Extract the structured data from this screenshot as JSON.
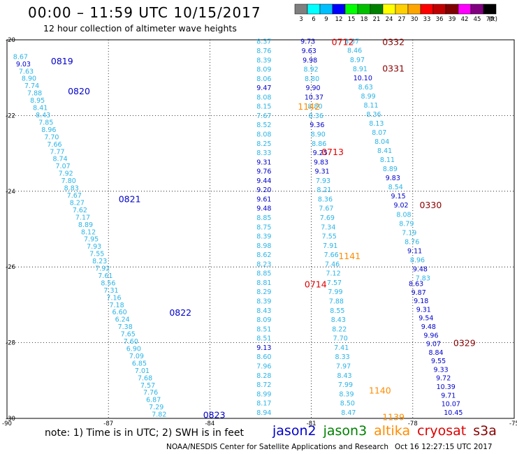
{
  "title": "00:00 – 11:59 UTC 10/15/2017",
  "subtitle": "12 hour collection of altimeter wave heights",
  "legend": {
    "labels": [
      "3",
      "6",
      "9",
      "12",
      "15",
      "18",
      "21",
      "24",
      "27",
      "30",
      "33",
      "36",
      "39",
      "42",
      "45",
      "70"
    ],
    "unit": "(ft)",
    "colors": [
      "#7f7f7f",
      "#00ffff",
      "#00bfff",
      "#0000ff",
      "#00ff00",
      "#00c000",
      "#008000",
      "#ffff00",
      "#ffd000",
      "#ffa500",
      "#ff0000",
      "#c00000",
      "#800000",
      "#ff00ff",
      "#800080",
      "#000000"
    ]
  },
  "footer": {
    "note": "note: 1) Time is in UTC; 2) SWH is in feet",
    "satellites": [
      {
        "name": "jason2",
        "color": "#0000cc"
      },
      {
        "name": "jason3",
        "color": "#008000"
      },
      {
        "name": "altika",
        "color": "#ff8c00"
      },
      {
        "name": "cryosat",
        "color": "#dd0000"
      },
      {
        "name": "s3a",
        "color": "#880000"
      }
    ],
    "credit": "NOAA/NESDIS Center for Satellite Applications and Research",
    "timestamp": "Oct 16 12:27:15 UTC 2017"
  },
  "chart_data": {
    "type": "map",
    "xticks": [
      "-90",
      "-87",
      "-84",
      "-81",
      "-78",
      "-75"
    ],
    "yticks": [
      "-20",
      "-22",
      "-24",
      "-26",
      "-28",
      "-30"
    ],
    "xlim": [
      -90,
      -75
    ],
    "ylim": [
      -30,
      -20
    ],
    "tracks": [
      {
        "color": "#2ab4e6",
        "x0": -89.6,
        "y0": -20.45,
        "x1": -85.5,
        "y1": -29.9,
        "values": [
          "8.67",
          "9.03",
          "7.63",
          "8.90",
          "7.74",
          "7.88",
          "8.95",
          "8.41",
          "8.43",
          "7.85",
          "8.96",
          "7.70",
          "7.66",
          "7.77",
          "8.74",
          "7.07",
          "7.92",
          "7.80",
          "8.83",
          "7.67",
          "8.27",
          "7.62",
          "7.17",
          "8.89",
          "8.12",
          "7.95",
          "7.93",
          "7.55",
          "8.23",
          "7.92",
          "7.61",
          "8.56",
          "7.31",
          "7.16",
          "7.18",
          "6.60",
          "6.24",
          "7.38",
          "7.65",
          "7.60",
          "6.90",
          "7.09",
          "6.85",
          "7.01",
          "7.68",
          "7.57",
          "7.76",
          "6.87",
          "7.29",
          "7.82"
        ]
      },
      {
        "color": "#2ab4e6",
        "x0": -82.4,
        "y0": -20.05,
        "x1": -82.4,
        "y1": -29.85,
        "values": [
          "8.37",
          "8.76",
          "8.39",
          "8.09",
          "8.06",
          "9.47",
          "8.08",
          "8.15",
          "7.67",
          "8.52",
          "8.08",
          "8.25",
          "8.33",
          "9.31",
          "9.76",
          "9.44",
          "9.20",
          "9.61",
          "9.48",
          "8.85",
          "8.75",
          "8.39",
          "8.98",
          "8.62",
          "8.23",
          "8.85",
          "8.81",
          "8.29",
          "8.39",
          "8.43",
          "8.09",
          "8.51",
          "8.51",
          "9.13",
          "8.60",
          "7.96",
          "8.28",
          "8.72",
          "8.99",
          "8.17",
          "8.94"
        ]
      },
      {
        "color": "#2ab4e6",
        "x0": -81.1,
        "y0": -20.05,
        "x1": -79.9,
        "y1": -29.85,
        "values": [
          "9.73",
          "9.63",
          "9.98",
          "8.92",
          "8.80",
          "9.90",
          "10.37",
          "8.80",
          "8.36",
          "9.36",
          "8.90",
          "8.86",
          "9.25",
          "9.83",
          "9.31",
          "7.93",
          "8.21",
          "8.36",
          "7.67",
          "7.69",
          "7.34",
          "7.55",
          "7.91",
          "7.66",
          "7.46",
          "7.12",
          "7.57",
          "7.99",
          "7.88",
          "8.55",
          "8.43",
          "8.22",
          "7.70",
          "7.41",
          "8.33",
          "7.97",
          "8.43",
          "7.99",
          "8.39",
          "8.50",
          "8.47"
        ]
      },
      {
        "color": "#2ab4e6",
        "x0": -79.8,
        "y0": -20.05,
        "x1": -77.7,
        "y1": -26.3,
        "values": [
          "8.57",
          "8.46",
          "8.97",
          "8.91",
          "10.10",
          "8.63",
          "8.99",
          "8.11",
          "8.36",
          "8.13",
          "8.07",
          "8.04",
          "8.41",
          "8.11",
          "8.89",
          "9.83",
          "8.54",
          "9.15",
          "9.02",
          "8.08",
          "8.79",
          "7.19",
          "8.76",
          "9.11",
          "8.96",
          "9.48",
          "7.83"
        ]
      },
      {
        "color": "#0000cc",
        "x0": -77.9,
        "y0": -26.45,
        "x1": -76.8,
        "y1": -29.85,
        "values": [
          "8.63",
          "9.87",
          "9.18",
          "9.31",
          "9.54",
          "9.48",
          "9.96",
          "9.07",
          "8.84",
          "9.55",
          "9.33",
          "9.72",
          "10.39",
          "9.71",
          "10.07",
          "10.45"
        ]
      }
    ],
    "annotations": [
      {
        "text": "0819",
        "color": "#0000cc",
        "x": -88.7,
        "y": -20.55
      },
      {
        "text": "0820",
        "color": "#0000cc",
        "x": -88.2,
        "y": -21.35
      },
      {
        "text": "0821",
        "color": "#0000cc",
        "x": -86.7,
        "y": -24.2
      },
      {
        "text": "0822",
        "color": "#0000cc",
        "x": -85.2,
        "y": -27.2
      },
      {
        "text": "0823",
        "color": "#0000cc",
        "x": -84.2,
        "y": -29.9
      },
      {
        "text": "0712",
        "color": "#dd0000",
        "x": -80.4,
        "y": -20.05
      },
      {
        "text": "0713",
        "color": "#dd0000",
        "x": -80.7,
        "y": -22.95
      },
      {
        "text": "0714",
        "color": "#dd0000",
        "x": -81.2,
        "y": -26.45
      },
      {
        "text": "0332",
        "color": "#880000",
        "x": -78.9,
        "y": -20.05
      },
      {
        "text": "0331",
        "color": "#880000",
        "x": -78.9,
        "y": -20.75
      },
      {
        "text": "0330",
        "color": "#880000",
        "x": -77.8,
        "y": -24.35
      },
      {
        "text": "0329",
        "color": "#880000",
        "x": -76.8,
        "y": -28.0
      },
      {
        "text": "1142",
        "color": "#ff8c00",
        "x": -81.4,
        "y": -21.75
      },
      {
        "text": "1141",
        "color": "#ff8c00",
        "x": -80.2,
        "y": -25.7
      },
      {
        "text": "1140",
        "color": "#ff8c00",
        "x": -79.3,
        "y": -29.25
      },
      {
        "text": "1139",
        "color": "#ff8c00",
        "x": -78.9,
        "y": -29.95
      }
    ]
  }
}
